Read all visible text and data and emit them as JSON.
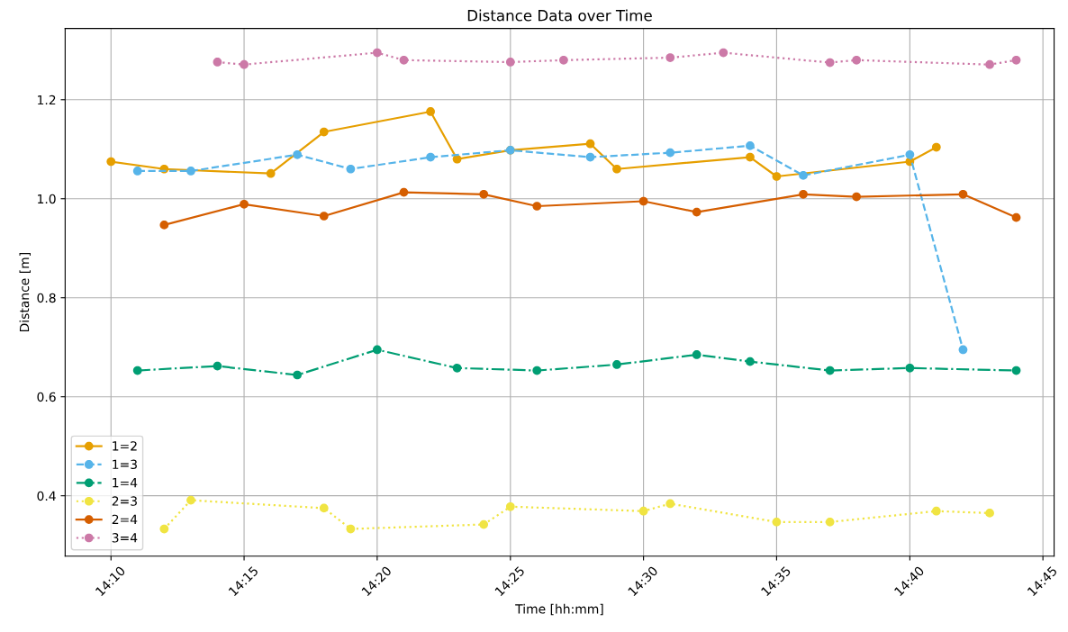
{
  "chart_data": {
    "type": "line",
    "title": "Distance Data over Time",
    "xlabel": "Time [hh:mm]",
    "ylabel": "Distance [m]",
    "xlim": [
      14.138,
      14.757
    ],
    "ylim": [
      0.278,
      1.344
    ],
    "xticks": [
      {
        "value": 14.1667,
        "label": "14:10"
      },
      {
        "value": 14.25,
        "label": "14:15"
      },
      {
        "value": 14.3333,
        "label": "14:20"
      },
      {
        "value": 14.4167,
        "label": "14:25"
      },
      {
        "value": 14.5,
        "label": "14:30"
      },
      {
        "value": 14.5833,
        "label": "14:35"
      },
      {
        "value": 14.6667,
        "label": "14:40"
      },
      {
        "value": 14.75,
        "label": "14:45"
      }
    ],
    "yticks": [
      0.4,
      0.6,
      0.8,
      {
        "value": 1,
        "label": "1.0"
      },
      1.2
    ],
    "grid": true,
    "legend": "bottom left",
    "marker": "circle",
    "series": [
      {
        "name": "1=2",
        "color": "#e69f00",
        "line_style": "solid",
        "x": [
          14.1667,
          14.2,
          14.2667,
          14.3,
          14.3667,
          14.3833,
          14.4167,
          14.4667,
          14.4833,
          14.5667,
          14.5833,
          14.6667,
          14.6833
        ],
        "values": [
          1.075,
          1.06,
          1.051,
          1.135,
          1.176,
          1.08,
          1.098,
          1.111,
          1.06,
          1.084,
          1.045,
          1.075,
          1.104
        ]
      },
      {
        "name": "1=3",
        "color": "#56b4e9",
        "line_style": "dashed",
        "x": [
          14.1833,
          14.2167,
          14.2833,
          14.3167,
          14.3667,
          14.4167,
          14.4667,
          14.5167,
          14.5667,
          14.6,
          14.6667,
          14.7
        ],
        "values": [
          1.056,
          1.056,
          1.089,
          1.06,
          1.084,
          1.098,
          1.084,
          1.093,
          1.107,
          1.047,
          1.089,
          0.695
        ]
      },
      {
        "name": "1=4",
        "color": "#009e73",
        "line_style": "dashdot",
        "x": [
          14.1833,
          14.2333,
          14.2833,
          14.3333,
          14.3833,
          14.4333,
          14.4833,
          14.5333,
          14.5667,
          14.6167,
          14.6667,
          14.7333
        ],
        "values": [
          0.653,
          0.662,
          0.644,
          0.695,
          0.658,
          0.653,
          0.665,
          0.685,
          0.671,
          0.653,
          0.658,
          0.653
        ]
      },
      {
        "name": "2=3",
        "color": "#f0e442",
        "line_style": "dotted",
        "x": [
          14.2,
          14.2167,
          14.3,
          14.3167,
          14.4,
          14.4167,
          14.5,
          14.5167,
          14.5833,
          14.6167,
          14.6833,
          14.7167
        ],
        "values": [
          0.333,
          0.391,
          0.375,
          0.333,
          0.342,
          0.378,
          0.369,
          0.384,
          0.347,
          0.347,
          0.369,
          0.365
        ]
      },
      {
        "name": "2=4",
        "color": "#d55e00",
        "line_style": "solid",
        "x": [
          14.2,
          14.25,
          14.3,
          14.35,
          14.4,
          14.4333,
          14.5,
          14.5333,
          14.6,
          14.6333,
          14.7,
          14.7333
        ],
        "values": [
          0.947,
          0.989,
          0.965,
          1.013,
          1.009,
          0.985,
          0.995,
          0.973,
          1.009,
          1.004,
          1.009,
          0.962
        ]
      },
      {
        "name": "3=4",
        "color": "#cc79a7",
        "line_style": "dotted",
        "x": [
          14.2333,
          14.25,
          14.3333,
          14.35,
          14.4167,
          14.45,
          14.5167,
          14.55,
          14.6167,
          14.6333,
          14.7167,
          14.7333
        ],
        "values": [
          1.276,
          1.271,
          1.295,
          1.28,
          1.276,
          1.28,
          1.285,
          1.295,
          1.275,
          1.28,
          1.271,
          1.28
        ]
      }
    ]
  }
}
